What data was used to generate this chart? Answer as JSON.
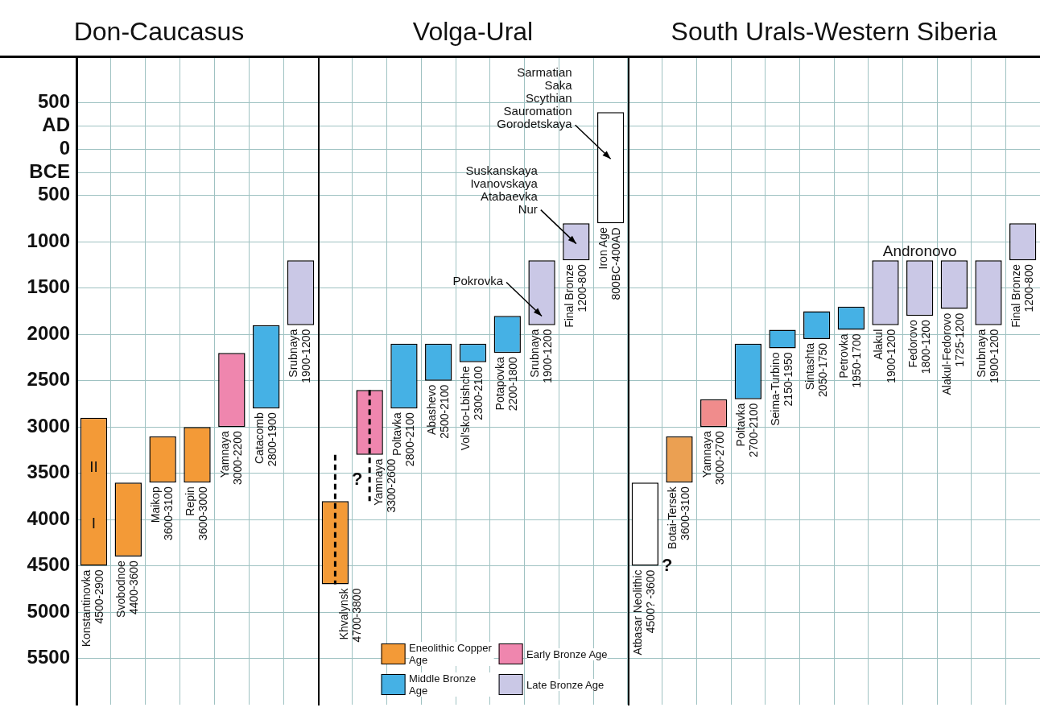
{
  "chart_data": [
    {
      "type": "bar",
      "title": "Don-Caucasus",
      "categories": [
        "Konstantinovka",
        "Svobodnoe",
        "Maikop",
        "Repin",
        "Yamnaya",
        "Catacomb",
        "Srubnaya"
      ],
      "series": [
        {
          "color": "#f39a37",
          "base": [
            2900,
            3600,
            3100,
            3000,
            null,
            null,
            null
          ],
          "values": [
            1600,
            800,
            500,
            600,
            null,
            null,
            null
          ],
          "value_labels": [
            "4500-2900",
            "4400-3600",
            "3600-3100",
            "3600-3000",
            null,
            null,
            null
          ]
        },
        {
          "color": "#ef86ae",
          "base": [
            null,
            null,
            null,
            null,
            2200,
            null,
            null
          ],
          "values": [
            null,
            null,
            null,
            null,
            800,
            null,
            null
          ],
          "value_labels": [
            null,
            null,
            null,
            null,
            "3000-2200",
            null,
            null
          ]
        },
        {
          "color": "#45b1e5",
          "base": [
            null,
            null,
            null,
            null,
            null,
            1900,
            null
          ],
          "values": [
            null,
            null,
            null,
            null,
            null,
            900,
            null
          ],
          "value_labels": [
            null,
            null,
            null,
            null,
            null,
            "2800-1900",
            null
          ]
        },
        {
          "color": "#cac8e6",
          "base": [
            null,
            null,
            null,
            null,
            null,
            null,
            1200
          ],
          "values": [
            null,
            null,
            null,
            null,
            null,
            null,
            700
          ],
          "value_labels": [
            null,
            null,
            null,
            null,
            null,
            null,
            "1900-1200"
          ]
        }
      ],
      "annotations": [
        "II",
        "I"
      ],
      "ylim": [
        6000,
        -1000
      ],
      "yticks": [
        {
          "value": -500,
          "label": "500"
        },
        {
          "value": -250,
          "label": "AD"
        },
        0,
        {
          "value": 250,
          "label": "BCE"
        },
        500,
        1000,
        1500,
        2000,
        2500,
        3000,
        3500,
        4000,
        4500,
        5000,
        5500
      ],
      "grid": true,
      "tick_labels": "y"
    },
    {
      "type": "bar",
      "title": "Volga-Ural",
      "categories": [
        "Khvalynsk",
        "Yamnaya",
        "Poltavka",
        "Abashevo",
        "Vol'sko-Lbishche",
        "Potapovka",
        "Srubnaya",
        "Final Bronze",
        "Iron Age"
      ],
      "series": [
        {
          "name": "Eneolithic Copper Age",
          "color": "#f39a37",
          "base": [
            3800,
            null,
            null,
            null,
            null,
            null,
            null,
            null,
            null
          ],
          "values": [
            900,
            null,
            null,
            null,
            null,
            null,
            null,
            null,
            null
          ],
          "value_labels": [
            "4700-3800",
            null,
            null,
            null,
            null,
            null,
            null,
            null,
            null
          ],
          "errors": [
            [
              3300,
              4700
            ],
            null,
            null,
            null,
            null,
            null,
            null,
            null,
            null
          ]
        },
        {
          "name": "Early Bronze Age",
          "color": "#ef86ae",
          "base": [
            null,
            2600,
            null,
            null,
            null,
            null,
            null,
            null,
            null
          ],
          "values": [
            null,
            700,
            null,
            null,
            null,
            null,
            null,
            null,
            null
          ],
          "value_labels": [
            null,
            "3300-2600",
            null,
            null,
            null,
            null,
            null,
            null,
            null
          ],
          "errors": [
            null,
            [
              2600,
              3800
            ],
            null,
            null,
            null,
            null,
            null,
            null,
            null
          ]
        },
        {
          "name": "Middle Bronze Age",
          "color": "#45b1e5",
          "base": [
            null,
            null,
            2100,
            2100,
            2100,
            1800,
            null,
            null,
            null
          ],
          "values": [
            null,
            null,
            700,
            400,
            200,
            400,
            null,
            null,
            null
          ],
          "value_labels": [
            null,
            null,
            "2800-2100",
            "2500-2100",
            "2300-2100",
            "2200-1800",
            null,
            null,
            null
          ]
        },
        {
          "name": "Late Bronze Age",
          "color": "#cac8e6",
          "base": [
            null,
            null,
            null,
            null,
            null,
            null,
            1200,
            800,
            null
          ],
          "values": [
            null,
            null,
            null,
            null,
            null,
            null,
            700,
            400,
            null
          ],
          "value_labels": [
            null,
            null,
            null,
            null,
            null,
            null,
            "1900-1200",
            "1200-800",
            null
          ]
        },
        {
          "color": "#ffffff",
          "base": [
            null,
            null,
            null,
            null,
            null,
            null,
            null,
            null,
            -400
          ],
          "values": [
            null,
            null,
            null,
            null,
            null,
            null,
            null,
            null,
            1200
          ],
          "value_labels": [
            null,
            null,
            null,
            null,
            null,
            null,
            null,
            null,
            null
          ]
        }
      ],
      "annotations": [
        "Sarmatian\nSaka\nScythian\nSauromation\nGorodetskaya",
        "Suskanskaya\nIvanovskaya\nAtabaevka\nNur",
        "Pokrovka",
        "?",
        "800BC-400AD"
      ],
      "ylim": [
        6000,
        -1000
      ],
      "grid": true,
      "tick_labels": false,
      "legend": "bottom"
    },
    {
      "type": "bar",
      "title": "South Urals-Western Siberia",
      "categories": [
        "Atbasar Neolithic",
        "Botai-Tersek",
        "Yamnaya",
        "Poltavka",
        "Seima-Turbino",
        "Sintashta",
        "Petrovka",
        "Alakul",
        "Fedorovo",
        "Alakul-Fedorovo",
        "Srubnaya",
        "Final Bronze"
      ],
      "series": [
        {
          "colors": [
            "#ffffff",
            "#eba052",
            "#f08c8c",
            "#45b1e5",
            "#45b1e5",
            "#45b1e5",
            "#45b1e5",
            "#cac8e6",
            "#cac8e6",
            "#cac8e6",
            "#cac8e6",
            "#cac8e6"
          ],
          "base": [
            3600,
            3100,
            2700,
            2100,
            1950,
            1750,
            1700,
            1200,
            1200,
            1200,
            1200,
            800
          ],
          "values": [
            900,
            500,
            300,
            600,
            200,
            300,
            250,
            700,
            600,
            525,
            700,
            400
          ],
          "value_labels": [
            null,
            "3600-3100",
            "3000-2700",
            "2700-2100",
            "2150-1950",
            "2050-1750",
            "1950-1700",
            "1900-1200",
            "1800-1200",
            "1725-1200",
            "1900-1200",
            "1200-800"
          ]
        }
      ],
      "annotations": [
        "Andronovo",
        "?",
        "4500? -3600"
      ],
      "ylim": [
        6000,
        -1000
      ],
      "grid": true,
      "tick_labels": false
    }
  ]
}
